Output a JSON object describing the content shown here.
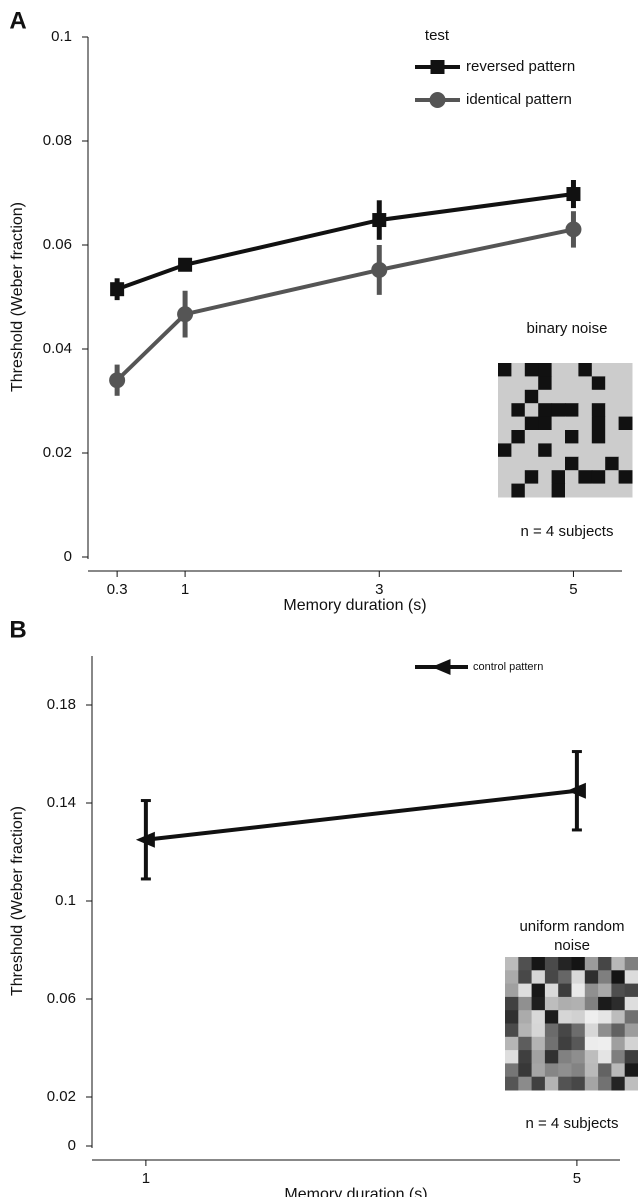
{
  "chart_data": [
    {
      "type": "line",
      "panel_label": "A",
      "xlabel": "Memory duration (s)",
      "ylabel": "Threshold (Weber fraction)",
      "x": [
        0.3,
        1,
        3,
        5
      ],
      "xlim": [
        0,
        5.5
      ],
      "xticks": [
        0.3,
        1,
        3,
        5
      ],
      "ylim": [
        0,
        0.1
      ],
      "yticks": [
        0,
        0.02,
        0.04,
        0.06,
        0.08,
        0.1
      ],
      "legend_title": "test",
      "legend": "upper right",
      "series": [
        {
          "name": "reversed pattern",
          "color": "#111111",
          "marker": "square",
          "values": [
            0.0515,
            0.0562,
            0.0648,
            0.0698
          ],
          "errors": [
            0.0021,
            0.0012,
            0.0038,
            0.0027
          ]
        },
        {
          "name": "identical pattern",
          "color": "#555555",
          "marker": "circle",
          "values": [
            0.034,
            0.0467,
            0.0552,
            0.063
          ],
          "errors": [
            0.003,
            0.0045,
            0.0048,
            0.0035
          ]
        }
      ],
      "annotations": [
        "binary noise",
        "n = 4 subjects"
      ]
    },
    {
      "type": "line",
      "panel_label": "B",
      "xlabel": "Memory duration (s)",
      "ylabel": "Threshold (Weber fraction)",
      "x": [
        1,
        5
      ],
      "xlim": [
        0.5,
        5.4
      ],
      "xticks": [
        1,
        5
      ],
      "ylim": [
        0,
        0.2
      ],
      "yticks": [
        0,
        0.02,
        0.06,
        0.1,
        0.14,
        0.18
      ],
      "legend": "upper right",
      "series": [
        {
          "name": "control pattern",
          "color": "#111111",
          "marker": "triangle-left",
          "values": [
            0.125,
            0.145
          ],
          "errors": [
            0.016,
            0.016
          ]
        }
      ],
      "annotations": [
        "uniform random noise",
        "n = 4 subjects"
      ]
    }
  ]
}
